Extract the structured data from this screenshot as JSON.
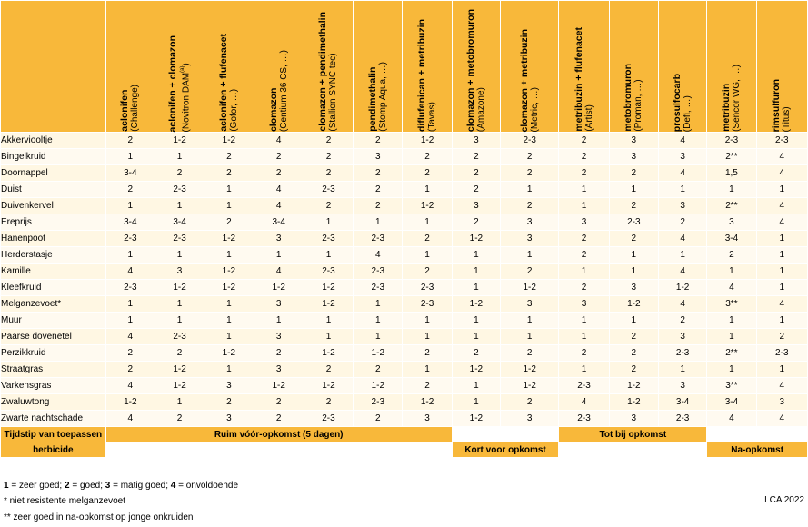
{
  "columns": [
    {
      "active": "aclonifen",
      "brand": "(Challenge)",
      "sup": ""
    },
    {
      "active": "aclonifen + clomazon",
      "brand": "(Novitron DAM",
      "sup": "(a)",
      "brand_close": ")"
    },
    {
      "active": "aclonifen + flufenacet",
      "brand": "(Gofor, …)",
      "sup": ""
    },
    {
      "active": "clomazon",
      "brand": "(Centium 36 CS, …)",
      "sup": ""
    },
    {
      "active": "clomazon + pendimethalin",
      "brand": "(Stallion SYNC tec)",
      "sup": ""
    },
    {
      "active": "pendimethalin",
      "brand": "(Stomp Aqua, …)",
      "sup": ""
    },
    {
      "active": "diflufenican + metribuzin",
      "brand": "(Tavas)",
      "sup": ""
    },
    {
      "active": "clomazon + metobromuron",
      "brand": "(Amazone)",
      "sup": ""
    },
    {
      "active": "clomazon + metribuzin",
      "brand": "(Metric, …)",
      "sup": ""
    },
    {
      "active": "metribuzin + flufenacet",
      "brand": "(Artist)",
      "sup": ""
    },
    {
      "active": "metobromuron",
      "brand": "(Proman, …)",
      "sup": ""
    },
    {
      "active": "prosulfocarb",
      "brand": "(Defi, …)",
      "sup": ""
    },
    {
      "active": "metribuzin",
      "brand": "(Sencor WG, …)",
      "sup": ""
    },
    {
      "active": "rimsulfuron",
      "brand": "(Titus)",
      "sup": ""
    }
  ],
  "rows": [
    {
      "name": "Akkerviooltje",
      "v": [
        "2",
        "1-2",
        "1-2",
        "4",
        "2",
        "2",
        "1-2",
        "3",
        "2-3",
        "2",
        "3",
        "4",
        "2-3",
        "2-3"
      ]
    },
    {
      "name": "Bingelkruid",
      "v": [
        "1",
        "1",
        "2",
        "2",
        "2",
        "3",
        "2",
        "2",
        "2",
        "2",
        "3",
        "3",
        "2**",
        "4"
      ]
    },
    {
      "name": "Doornappel",
      "v": [
        "3-4",
        "2",
        "2",
        "2",
        "2",
        "2",
        "2",
        "2",
        "2",
        "2",
        "2",
        "4",
        "1,5",
        "4"
      ]
    },
    {
      "name": "Duist",
      "v": [
        "2",
        "2-3",
        "1",
        "4",
        "2-3",
        "2",
        "1",
        "2",
        "1",
        "1",
        "1",
        "1",
        "1",
        "1"
      ]
    },
    {
      "name": "Duivenkervel",
      "v": [
        "1",
        "1",
        "1",
        "4",
        "2",
        "2",
        "1-2",
        "3",
        "2",
        "1",
        "2",
        "3",
        "2**",
        "4"
      ]
    },
    {
      "name": "Ereprijs",
      "v": [
        "3-4",
        "3-4",
        "2",
        "3-4",
        "1",
        "1",
        "1",
        "2",
        "3",
        "3",
        "2-3",
        "2",
        "3",
        "4"
      ]
    },
    {
      "name": "Hanenpoot",
      "v": [
        "2-3",
        "2-3",
        "1-2",
        "3",
        "2-3",
        "2-3",
        "2",
        "1-2",
        "3",
        "2",
        "2",
        "4",
        "3-4",
        "1"
      ]
    },
    {
      "name": "Herderstasje",
      "v": [
        "1",
        "1",
        "1",
        "1",
        "1",
        "4",
        "1",
        "1",
        "1",
        "2",
        "1",
        "1",
        "2",
        "1"
      ]
    },
    {
      "name": "Kamille",
      "v": [
        "4",
        "3",
        "1-2",
        "4",
        "2-3",
        "2-3",
        "2",
        "1",
        "2",
        "1",
        "1",
        "4",
        "1",
        "1"
      ]
    },
    {
      "name": "Kleefkruid",
      "v": [
        "2-3",
        "1-2",
        "1-2",
        "1-2",
        "1-2",
        "2-3",
        "2-3",
        "1",
        "1-2",
        "2",
        "3",
        "1-2",
        "4",
        "1"
      ]
    },
    {
      "name": "Melganzevoet*",
      "v": [
        "1",
        "1",
        "1",
        "3",
        "1-2",
        "1",
        "2-3",
        "1-2",
        "3",
        "3",
        "1-2",
        "4",
        "3**",
        "4"
      ]
    },
    {
      "name": "Muur",
      "v": [
        "1",
        "1",
        "1",
        "1",
        "1",
        "1",
        "1",
        "1",
        "1",
        "1",
        "1",
        "2",
        "1",
        "1"
      ]
    },
    {
      "name": "Paarse dovenetel",
      "v": [
        "4",
        "2-3",
        "1",
        "3",
        "1",
        "1",
        "1",
        "1",
        "1",
        "1",
        "2",
        "3",
        "1",
        "2"
      ]
    },
    {
      "name": "Perzikkruid",
      "v": [
        "2",
        "2",
        "1-2",
        "2",
        "1-2",
        "1-2",
        "2",
        "2",
        "2",
        "2",
        "2",
        "2-3",
        "2**",
        "2-3"
      ]
    },
    {
      "name": "Straatgras",
      "v": [
        "2",
        "1-2",
        "1",
        "3",
        "2",
        "2",
        "1",
        "1-2",
        "1-2",
        "1",
        "2",
        "1",
        "1",
        "1"
      ]
    },
    {
      "name": "Varkensgras",
      "v": [
        "4",
        "1-2",
        "3",
        "1-2",
        "1-2",
        "1-2",
        "2",
        "1",
        "1-2",
        "2-3",
        "1-2",
        "3",
        "3**",
        "4"
      ]
    },
    {
      "name": "Zwaluwtong",
      "v": [
        "1-2",
        "1",
        "2",
        "2",
        "2",
        "2-3",
        "1-2",
        "1",
        "2",
        "4",
        "1-2",
        "3-4",
        "3-4",
        "3"
      ]
    },
    {
      "name": "Zwarte nachtschade",
      "v": [
        "4",
        "2",
        "3",
        "2",
        "2-3",
        "2",
        "3",
        "1-2",
        "3",
        "2-3",
        "3",
        "2-3",
        "4",
        "4"
      ]
    }
  ],
  "timing": {
    "label_line1": "Tijdstip van toepassen",
    "label_line2": "herbicide",
    "pre_emergence": "Ruim vóór-opkomst (5 dagen)",
    "short_before": "Kort voor opkomst",
    "until_emergence": "Tot bij opkomst",
    "post_emergence": "Na-opkomst"
  },
  "legend": {
    "scale": [
      {
        "num": "1",
        "text": " = zeer goed; "
      },
      {
        "num": "2",
        "text": " = goed; "
      },
      {
        "num": "3",
        "text": " = matig goed; "
      },
      {
        "num": "4",
        "text": " = onvoldoende"
      }
    ],
    "note1": "* niet resistente melganzevoet",
    "note2": "** zeer goed in na-opkomst op jonge onkruiden"
  },
  "credit": "LCA 2022",
  "colors": {
    "header": "#f8b83a",
    "cell": "#fff7e3"
  }
}
